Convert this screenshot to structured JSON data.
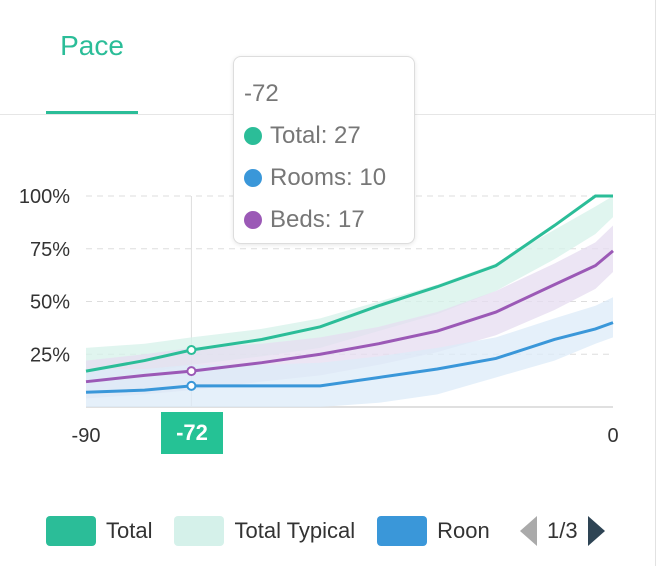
{
  "tab": {
    "label": "Pace"
  },
  "tooltip": {
    "title": "-72",
    "rows": [
      {
        "label": "Total: 27",
        "color": "#2bbd98"
      },
      {
        "label": "Rooms: 10",
        "color": "#3a97d9"
      },
      {
        "label": "Beds: 17",
        "color": "#9b59b6"
      }
    ]
  },
  "crosshair_label": "-72",
  "legend": {
    "items": [
      {
        "label": "Total",
        "color": "#2bbd98"
      },
      {
        "label": "Total Typical",
        "color": "#d5f1ea"
      },
      {
        "label": "Roon",
        "color": "#3a97d9"
      }
    ],
    "page": "1/3"
  },
  "chart_data": {
    "type": "line",
    "x": [
      -90,
      -80,
      -72,
      -60,
      -50,
      -40,
      -30,
      -20,
      -10,
      -3,
      0
    ],
    "xlim": [
      -90,
      0
    ],
    "ylim": [
      0,
      100
    ],
    "x_ticks": [
      "-90",
      "0"
    ],
    "y_ticks": [
      {
        "v": 100,
        "label": "100%"
      },
      {
        "v": 75,
        "label": "75%"
      },
      {
        "v": 50,
        "label": "50%"
      },
      {
        "v": 25,
        "label": "25%"
      }
    ],
    "grid": true,
    "highlight_x": -72,
    "series": [
      {
        "name": "Total",
        "color": "#2bbd98",
        "band_color": "#d5f1ea",
        "values": [
          17,
          22,
          27,
          32,
          38,
          48,
          57,
          67,
          86,
          100,
          100
        ],
        "band_lo": [
          13,
          16,
          20,
          24,
          28,
          36,
          44,
          55,
          70,
          82,
          90
        ],
        "band_hi": [
          28,
          30,
          33,
          37,
          42,
          50,
          58,
          68,
          84,
          95,
          100
        ]
      },
      {
        "name": "Beds",
        "color": "#9b59b6",
        "band_color": "#e6dcf0",
        "values": [
          12,
          15,
          17,
          21,
          25,
          30,
          36,
          45,
          58,
          67,
          74
        ],
        "band_lo": [
          4,
          6,
          8,
          12,
          15,
          20,
          26,
          34,
          46,
          56,
          64
        ],
        "band_hi": [
          22,
          25,
          28,
          30,
          33,
          38,
          45,
          55,
          68,
          78,
          86
        ]
      },
      {
        "name": "Rooms",
        "color": "#3a97d9",
        "band_color": "#dcebf8",
        "values": [
          7,
          8,
          10,
          10,
          10,
          14,
          18,
          23,
          32,
          37,
          40
        ],
        "band_lo": [
          0,
          0,
          0,
          0,
          0,
          2,
          6,
          14,
          22,
          30,
          33
        ],
        "band_hi": [
          18,
          18,
          20,
          20,
          21,
          24,
          28,
          33,
          42,
          48,
          52
        ]
      }
    ]
  }
}
